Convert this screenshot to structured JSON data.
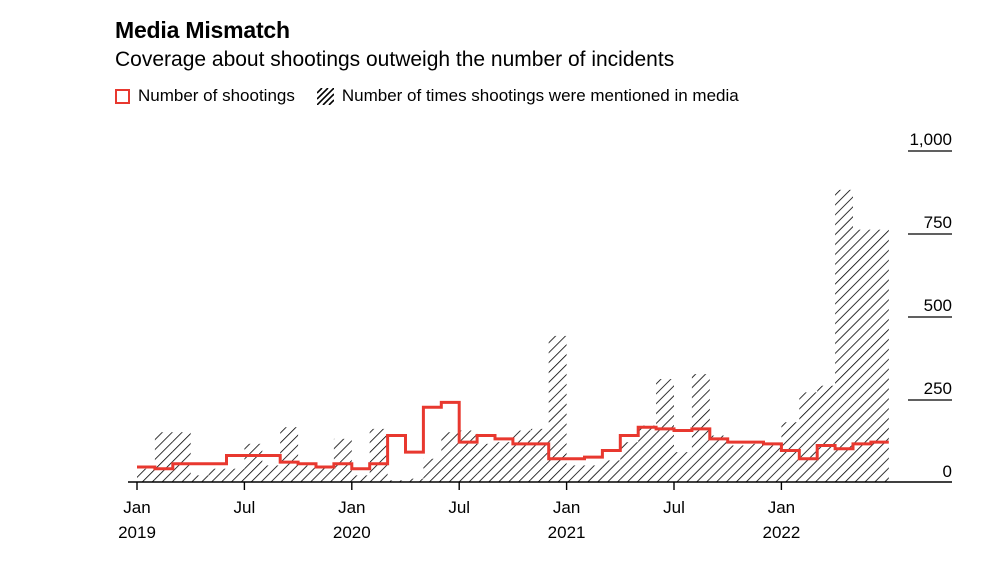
{
  "title": "Media Mismatch",
  "subtitle": "Coverage about shootings outweigh the number of incidents",
  "legend": {
    "line_label": "Number of shootings",
    "hatch_label": "Number of times shootings were mentioned in media"
  },
  "colors": {
    "line": "#e8382f",
    "hatch": "#000000",
    "axis": "#000000"
  },
  "chart_data": {
    "type": "bar",
    "y_ticks": [
      "1,000",
      "750",
      "500",
      "250",
      "0"
    ],
    "y_tick_values": [
      1000,
      750,
      500,
      250,
      0
    ],
    "ylim": [
      0,
      1000
    ],
    "x_ticks": [
      {
        "label": "Jan",
        "year": "2019",
        "month_index": 0
      },
      {
        "label": "Jul",
        "year": "",
        "month_index": 6
      },
      {
        "label": "Jan",
        "year": "2020",
        "month_index": 12
      },
      {
        "label": "Jul",
        "year": "",
        "month_index": 18
      },
      {
        "label": "Jan",
        "year": "2021",
        "month_index": 24
      },
      {
        "label": "Jul",
        "year": "",
        "month_index": 30
      },
      {
        "label": "Jan",
        "year": "2022",
        "month_index": 36
      }
    ],
    "start_month": "2019-01",
    "series": [
      {
        "name": "Number of times shootings were mentioned in media",
        "style": "hatched-bar",
        "values": [
          40,
          150,
          150,
          20,
          40,
          40,
          115,
          50,
          165,
          50,
          45,
          130,
          20,
          160,
          5,
          10,
          70,
          150,
          155,
          115,
          120,
          155,
          160,
          440,
          50,
          50,
          65,
          120,
          170,
          310,
          90,
          325,
          140,
          110,
          115,
          110,
          180,
          270,
          290,
          880,
          760,
          760
        ]
      },
      {
        "name": "Number of shootings",
        "style": "step-line",
        "values": [
          45,
          40,
          55,
          55,
          55,
          80,
          80,
          80,
          60,
          55,
          45,
          55,
          40,
          55,
          140,
          90,
          225,
          240,
          120,
          140,
          130,
          115,
          115,
          70,
          70,
          75,
          95,
          140,
          165,
          160,
          155,
          160,
          130,
          120,
          120,
          115,
          95,
          70,
          110,
          100,
          115,
          120
        ]
      }
    ]
  }
}
